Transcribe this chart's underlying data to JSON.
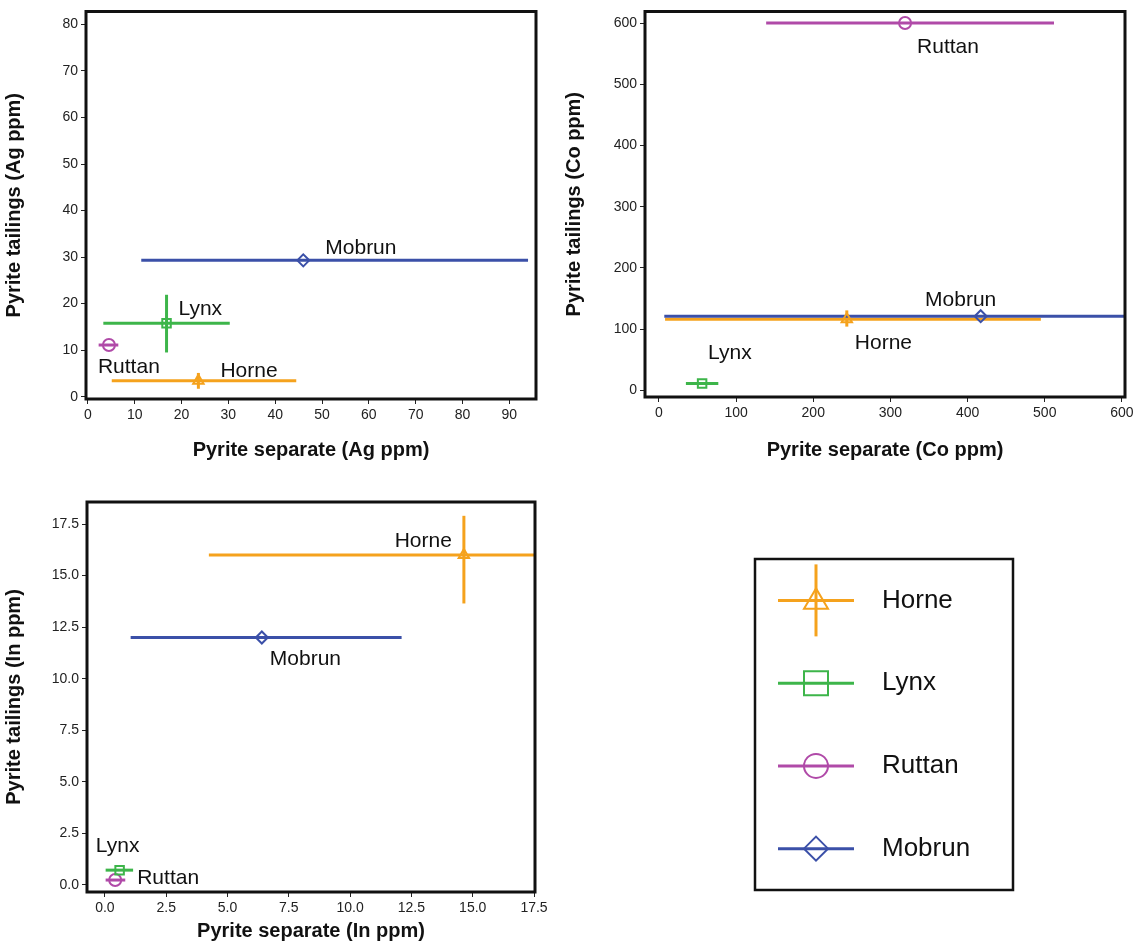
{
  "chart_data": [
    {
      "type": "scatter",
      "xlabel": "Pyrite separate (Ag ppm)",
      "ylabel": "Pyrite tailings (Ag ppm)",
      "xlim": [
        -0.4,
        95.7
      ],
      "ylim": [
        -0.5,
        82.8
      ],
      "xticks": [
        0,
        10,
        20,
        30,
        40,
        50,
        60,
        70,
        80,
        90
      ],
      "yticks": [
        0,
        10,
        20,
        30,
        40,
        50,
        60,
        70,
        80
      ],
      "grid": false,
      "legend": false,
      "series": [
        {
          "name": "Horne",
          "color": "#f5a21d",
          "marker": "triangle",
          "x": [
            23.6
          ],
          "values": [
            3.4
          ],
          "xerrors": [
            [
              5.1,
              44.5
            ]
          ],
          "errors": [
            [
              1.7,
              5.1
            ]
          ]
        },
        {
          "name": "Lynx",
          "color": "#3db54a",
          "marker": "square",
          "x": [
            16.8
          ],
          "values": [
            15.8
          ],
          "xerrors": [
            [
              3.3,
              30.3
            ]
          ],
          "errors": [
            [
              9.5,
              21.9
            ]
          ]
        },
        {
          "name": "Ruttan",
          "color": "#b04aa8",
          "marker": "circle",
          "x": [
            4.5
          ],
          "values": [
            11.1
          ],
          "xerrors": [
            [
              2.3,
              6.5
            ]
          ]
        },
        {
          "name": "Mobrun",
          "color": "#3b50a8",
          "marker": "diamond",
          "x": [
            46.0
          ],
          "values": [
            29.3
          ],
          "xerrors": [
            [
              11.4,
              94.0
            ]
          ]
        }
      ]
    },
    {
      "type": "scatter",
      "xlabel": "Pyrite separate (Co ppm)",
      "ylabel": "Pyrite tailings (Co ppm)",
      "xlim": [
        -18,
        604
      ],
      "ylim": [
        -11,
        619
      ],
      "xticks": [
        0,
        100,
        200,
        300,
        400,
        500,
        600
      ],
      "yticks": [
        0,
        100,
        200,
        300,
        400,
        500,
        600
      ],
      "grid": false,
      "legend": false,
      "series": [
        {
          "name": "Horne",
          "color": "#f5a21d",
          "marker": "triangle",
          "x": [
            243.5
          ],
          "values": [
            116
          ],
          "xerrors": [
            [
              8,
              495
            ]
          ],
          "errors": [
            [
              104,
              130.5
            ]
          ]
        },
        {
          "name": "Lynx",
          "color": "#3db54a",
          "marker": "square",
          "x": [
            56
          ],
          "values": [
            11
          ],
          "xerrors": [
            [
              35,
              77
            ]
          ]
        },
        {
          "name": "Ruttan",
          "color": "#b04aa8",
          "marker": "circle",
          "x": [
            319
          ],
          "values": [
            600
          ],
          "xerrors": [
            [
              139,
              512
            ]
          ]
        },
        {
          "name": "Mobrun",
          "color": "#3b50a8",
          "marker": "diamond",
          "x": [
            417
          ],
          "values": [
            121
          ],
          "xerrors": [
            [
              7,
              603
            ]
          ]
        }
      ]
    },
    {
      "type": "scatter",
      "xlabel": "Pyrite separate (In ppm)",
      "ylabel": "Pyrite tailings (In ppm)",
      "xlim": [
        -0.73,
        17.54
      ],
      "ylim": [
        -0.34,
        18.57
      ],
      "xticks": [
        {
          "value": 0,
          "label": "0.0"
        },
        {
          "value": 2.5,
          "label": "2.5"
        },
        {
          "value": 5,
          "label": "5.0"
        },
        {
          "value": 7.5,
          "label": "7.5"
        },
        {
          "value": 10,
          "label": "10.0"
        },
        {
          "value": 12.5,
          "label": "12.5"
        },
        {
          "value": 15,
          "label": "15.0"
        },
        {
          "value": 17.5,
          "label": "17.5"
        }
      ],
      "yticks": [
        {
          "value": 0,
          "label": "0.0"
        },
        {
          "value": 2.5,
          "label": "2.5"
        },
        {
          "value": 5,
          "label": "5.0"
        },
        {
          "value": 7.5,
          "label": "7.5"
        },
        {
          "value": 10,
          "label": "10.0"
        },
        {
          "value": 12.5,
          "label": "12.5"
        },
        {
          "value": 15,
          "label": "15.0"
        },
        {
          "value": 17.5,
          "label": "17.5"
        }
      ],
      "grid": false,
      "legend": "right",
      "series": [
        {
          "name": "Horne",
          "color": "#f5a21d",
          "marker": "triangle",
          "x": [
            14.64
          ],
          "values": [
            16.0
          ],
          "xerrors": [
            [
              4.24,
              17.5
            ]
          ],
          "errors": [
            [
              13.65,
              17.9
            ]
          ]
        },
        {
          "name": "Lynx",
          "color": "#3db54a",
          "marker": "square",
          "x": [
            0.6
          ],
          "values": [
            0.72
          ],
          "xerrors": [
            [
              0.03,
              1.15
            ]
          ]
        },
        {
          "name": "Ruttan",
          "color": "#b04aa8",
          "marker": "circle",
          "x": [
            0.42
          ],
          "values": [
            0.24
          ],
          "xerrors": [
            [
              0.03,
              0.83
            ]
          ]
        },
        {
          "name": "Mobrun",
          "color": "#3b50a8",
          "marker": "diamond",
          "x": [
            6.4
          ],
          "values": [
            12.0
          ],
          "xerrors": [
            [
              1.05,
              12.1
            ]
          ]
        }
      ]
    }
  ]
}
